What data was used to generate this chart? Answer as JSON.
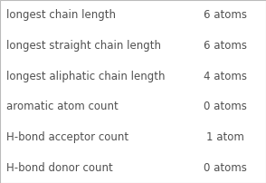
{
  "rows": [
    [
      "longest chain length",
      "6 atoms"
    ],
    [
      "longest straight chain length",
      "6 atoms"
    ],
    [
      "longest aliphatic chain length",
      "4 atoms"
    ],
    [
      "aromatic atom count",
      "0 atoms"
    ],
    [
      "H-bond acceptor count",
      "1 atom"
    ],
    [
      "H-bond donor count",
      "0 atoms"
    ]
  ],
  "col_split": 0.695,
  "bg_color": "#ffffff",
  "border_color": "#bbbbbb",
  "text_color_left": "#505050",
  "text_color_right": "#505050",
  "font_size": 8.5,
  "fig_width": 2.94,
  "fig_height": 2.02,
  "dpi": 100
}
